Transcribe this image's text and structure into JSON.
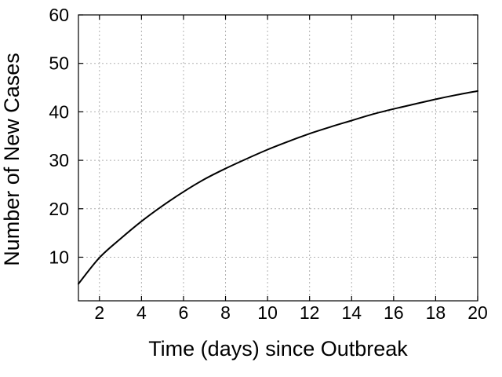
{
  "chart_data": {
    "type": "line",
    "title": "",
    "xlabel": "Time (days) since Outbreak",
    "ylabel": "Number of New Cases",
    "xlim": [
      1,
      20
    ],
    "ylim": [
      1,
      60
    ],
    "xticks": [
      2,
      4,
      6,
      8,
      10,
      12,
      14,
      16,
      18,
      20
    ],
    "yticks": [
      10,
      20,
      30,
      40,
      50,
      60
    ],
    "grid": true,
    "legend": "none",
    "series": [
      {
        "color": "#000000",
        "x": [
          1,
          2,
          3,
          4,
          5,
          6,
          7,
          8,
          9,
          10,
          11,
          12,
          13,
          14,
          15,
          16,
          17,
          18,
          19,
          20
        ],
        "y": [
          4.5,
          9.9,
          13.8,
          17.4,
          20.6,
          23.5,
          26.1,
          28.3,
          30.3,
          32.2,
          33.9,
          35.5,
          36.9,
          38.2,
          39.5,
          40.6,
          41.6,
          42.6,
          43.5,
          44.3
        ]
      }
    ]
  }
}
